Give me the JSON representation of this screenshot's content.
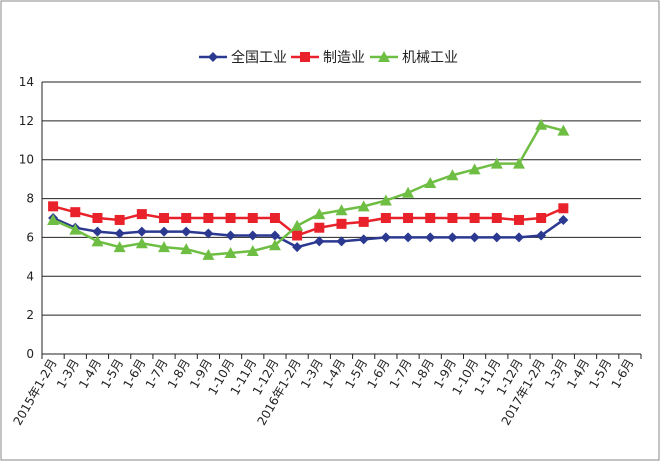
{
  "chart_data": {
    "type": "line",
    "categories": [
      "2015年1-2月",
      "1-3月",
      "1-4月",
      "1-5月",
      "1-6月",
      "1-7月",
      "1-8月",
      "1-9月",
      "1-10月",
      "1-11月",
      "1-12月",
      "2016年1-2月",
      "1-3月",
      "1-4月",
      "1-5月",
      "1-6月",
      "1-7月",
      "1-8月",
      "1-9月",
      "1-10月",
      "1-11月",
      "1-12月",
      "2017年1-2月",
      "1-3月",
      "1-4月",
      "1-5月",
      "1-6月"
    ],
    "series": [
      {
        "name": "全国工业",
        "color": "#2b3990",
        "marker": "diamond",
        "values": [
          7.0,
          6.5,
          6.3,
          6.2,
          6.3,
          6.3,
          6.3,
          6.2,
          6.1,
          6.1,
          6.1,
          5.5,
          5.8,
          5.8,
          5.9,
          6.0,
          6.0,
          6.0,
          6.0,
          6.0,
          6.0,
          6.0,
          6.1,
          6.9,
          null,
          null,
          null
        ]
      },
      {
        "name": "制造业",
        "color": "#e8212a",
        "marker": "square",
        "values": [
          7.6,
          7.3,
          7.0,
          6.9,
          7.2,
          7.0,
          7.0,
          7.0,
          7.0,
          7.0,
          7.0,
          6.1,
          6.5,
          6.7,
          6.8,
          7.0,
          7.0,
          7.0,
          7.0,
          7.0,
          7.0,
          6.9,
          7.0,
          7.5,
          null,
          null,
          null
        ]
      },
      {
        "name": "机械工业",
        "color": "#6fbe44",
        "marker": "triangle",
        "values": [
          6.9,
          6.4,
          5.8,
          5.5,
          5.7,
          5.5,
          5.4,
          5.1,
          5.2,
          5.3,
          5.6,
          6.6,
          7.2,
          7.4,
          7.6,
          7.9,
          8.3,
          8.8,
          9.2,
          9.5,
          9.8,
          9.8,
          11.8,
          11.5,
          null,
          null,
          null
        ]
      }
    ],
    "ylim": [
      0,
      14
    ],
    "yticks": [
      0,
      2,
      4,
      6,
      8,
      10,
      12,
      14
    ],
    "grid": true,
    "legend": "top"
  }
}
